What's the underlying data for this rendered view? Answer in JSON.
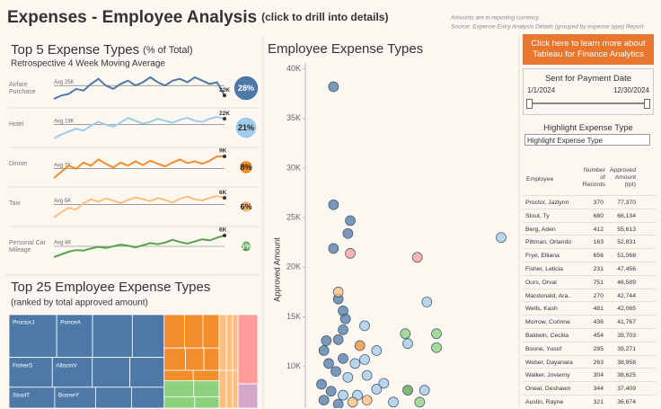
{
  "header": {
    "title": "Expenses - Employee Analysis",
    "subtitle": "(click to drill into details)",
    "note": "Amounts are in reporting currency.",
    "source": "Source: Expense Entry Analysis Details (grouped by expense type) Report"
  },
  "chart_data": [
    {
      "type": "sparklines",
      "title": "Top 5 Expense Types",
      "title_suffix": "(% of Total)",
      "subtitle": "Retrospective 4 Week Moving Average",
      "rows": [
        {
          "name": "Airfare Purchase",
          "color": "#4e79a7",
          "values": [
            21000,
            22000,
            22500,
            24000,
            23500,
            25500,
            27000,
            25000,
            24000,
            25500,
            26500,
            25000,
            26000,
            27500,
            26000,
            25000,
            26500,
            27000,
            26000,
            27500,
            26500,
            25500,
            26000,
            22000
          ],
          "average": {
            "value": 25000,
            "label": "Avg 25K"
          },
          "last_label": "22K",
          "share": 28,
          "share_label": "28%"
        },
        {
          "name": "Hotel",
          "color": "#a0cbe8",
          "values": [
            12000,
            14000,
            15500,
            17000,
            16000,
            18500,
            20500,
            19000,
            18000,
            20000,
            22500,
            21000,
            19500,
            20500,
            22000,
            21000,
            20000,
            21500,
            22500,
            21000,
            20500,
            22000,
            23000,
            22000
          ],
          "average": {
            "value": 19000,
            "label": "Avg 19K"
          },
          "last_label": "22K",
          "share": 21,
          "share_label": "21%"
        },
        {
          "name": "Dinner",
          "color": "#f28e2b",
          "values": [
            5500,
            6500,
            7500,
            7000,
            8000,
            7500,
            8500,
            7800,
            7200,
            8000,
            7500,
            8200,
            7600,
            8300,
            7800,
            7400,
            8000,
            8500,
            7900,
            8200,
            7800,
            8300,
            9000,
            9000
          ],
          "average": {
            "value": 7000,
            "label": "Avg 7K"
          },
          "last_label": "9K",
          "share": 8,
          "share_label": "8%"
        },
        {
          "name": "Taxi",
          "color": "#ffbe7d",
          "values": [
            3000,
            3800,
            4500,
            4200,
            5200,
            5800,
            5400,
            5900,
            5600,
            5200,
            5700,
            6100,
            5800,
            5500,
            6000,
            5700,
            5300,
            5900,
            6200,
            5800,
            5600,
            6000,
            6300,
            6000
          ],
          "average": {
            "value": 5000,
            "label": "Avg 5K"
          },
          "last_label": "6K",
          "share": 6,
          "share_label": "6%"
        },
        {
          "name": "Personal Car Mileage",
          "color": "#59a14f",
          "values": [
            2000,
            2500,
            3000,
            3300,
            3200,
            3600,
            3900,
            3700,
            4000,
            4300,
            4100,
            3800,
            4200,
            4600,
            4400,
            4700,
            5200,
            4800,
            4500,
            4900,
            5300,
            5100,
            5600,
            6000
          ],
          "average": {
            "value": 4000,
            "label": "Avg 4K"
          },
          "last_label": "6K",
          "share": 5,
          "share_label": "5%"
        }
      ]
    },
    {
      "type": "treemap",
      "title": "Top 25 Employee Expense Types",
      "subtitle": "(ranked by total approved amount)",
      "columns": [
        [
          {
            "color": "#4e79a7",
            "values": [
              60,
              45,
              50,
              40,
              38,
              35,
              33,
              30,
              28,
              25,
              22,
              20
            ],
            "labels": [
              "ProctorJ",
              "PonceA",
              null,
              null,
              "FisherS",
              "AllisonV",
              null,
              null,
              "StoutT",
              "BooneY",
              null,
              null
            ]
          }
        ],
        [
          {
            "color": "#f28e2b",
            "values": [
              20,
              18,
              16,
              14,
              12,
              10,
              9,
              8
            ],
            "labels": [
              null,
              null,
              null,
              null,
              null,
              null,
              null,
              null
            ]
          },
          {
            "color": "#8cd17d",
            "values": [
              14,
              12,
              10,
              8
            ],
            "labels": [
              null,
              null,
              null,
              null
            ]
          }
        ],
        [
          {
            "color": "#ffbe7d",
            "values": [
              12,
              10,
              9,
              8,
              7,
              6
            ],
            "labels": [
              null,
              null,
              null,
              null,
              null,
              null
            ]
          }
        ],
        [
          {
            "color": "#ff9d9a",
            "values": [
              40
            ],
            "labels": [
              null
            ]
          },
          {
            "color": "#d4a6c8",
            "values": [
              14
            ],
            "labels": [
              null
            ]
          }
        ]
      ]
    },
    {
      "type": "scatter",
      "title": "Employee Expense Types",
      "y_label": "Approved Amount",
      "ylim": [
        5800,
        40600
      ],
      "yticks": [
        {
          "value": 10000,
          "label": "10K"
        },
        {
          "value": 15000,
          "label": "15K"
        },
        {
          "value": 20000,
          "label": "20K"
        },
        {
          "value": 25000,
          "label": "25K"
        },
        {
          "value": 30000,
          "label": "30K"
        },
        {
          "value": 35000,
          "label": "35K"
        },
        {
          "value": 40000,
          "label": "40K"
        }
      ],
      "series": [
        {
          "color": "#4e79a7",
          "x": [
            24,
            24,
            31,
            30,
            24,
            26,
            28,
            29,
            28,
            21,
            26,
            20,
            28,
            22,
            25,
            19,
            23,
            20,
            26
          ],
          "values": [
            38200,
            26300,
            24700,
            23400,
            21900,
            16800,
            15600,
            14800,
            13700,
            12600,
            12700,
            11600,
            10800,
            10300,
            9500,
            8200,
            7500,
            6600,
            6200
          ]
        },
        {
          "color": "#a0cbe8",
          "x": [
            94,
            63,
            37,
            55,
            42,
            33,
            37,
            30,
            38,
            45,
            28,
            34,
            42,
            62,
            49
          ],
          "values": [
            23000,
            16500,
            14100,
            12300,
            11600,
            10300,
            10700,
            8900,
            9100,
            8300,
            7100,
            7100,
            7700,
            7600,
            6400
          ]
        },
        {
          "color": "#ff9d9a",
          "x": [
            31,
            59
          ],
          "values": [
            21400,
            21000
          ]
        },
        {
          "color": "#ffbe7d",
          "x": [
            26,
            32,
            38
          ],
          "values": [
            17500,
            6400,
            6600
          ]
        },
        {
          "color": "#f28e2b",
          "x": [
            35
          ],
          "values": [
            12100
          ]
        },
        {
          "color": "#8cd17d",
          "x": [
            54,
            67,
            67,
            60
          ],
          "values": [
            13300,
            13300,
            11900,
            6400
          ]
        },
        {
          "color": "#59a14f",
          "x": [
            55
          ],
          "values": [
            7600
          ]
        }
      ]
    }
  ],
  "controls": {
    "button": "Click here to learn more about Tableau for Finance Analytics",
    "date_filter": {
      "title": "Sent for Payment Date",
      "start": "1/1/2024",
      "end": "12/30/2024"
    },
    "highlight": {
      "title": "Highlight Expense Type",
      "placeholder": "Highlight Expense Type"
    }
  },
  "table": {
    "headers": [
      "Employee",
      "Number of Records",
      "Approved Amount (rpt)"
    ],
    "rows": [
      [
        "Proctor, Jazlynn",
        370,
        "77,370"
      ],
      [
        "Stout, Ty",
        680,
        "66,134"
      ],
      [
        "Berg, Aden",
        412,
        "55,613"
      ],
      [
        "Pittman, Orlando",
        163,
        "52,831"
      ],
      [
        "Frye, Elliana",
        656,
        "51,068"
      ],
      [
        "Fisher, Leticia",
        231,
        "47,456"
      ],
      [
        "Ours, Orval",
        751,
        "46,589"
      ],
      [
        "Macdonald, Ara..",
        270,
        "42,744"
      ],
      [
        "Wells, Kash",
        481,
        "42,065"
      ],
      [
        "Morrow, Corinne",
        436,
        "41,767"
      ],
      [
        "Baldwin, Cecilia",
        454,
        "39,703"
      ],
      [
        "Boone, Yusuf",
        285,
        "39,271"
      ],
      [
        "Weber, Dayanara",
        263,
        "38,958"
      ],
      [
        "Walker, Jovanny",
        304,
        "38,625"
      ],
      [
        "Oneal, Deshawn",
        344,
        "37,409"
      ],
      [
        "Austin, Rayne",
        321,
        "36,674"
      ]
    ]
  }
}
